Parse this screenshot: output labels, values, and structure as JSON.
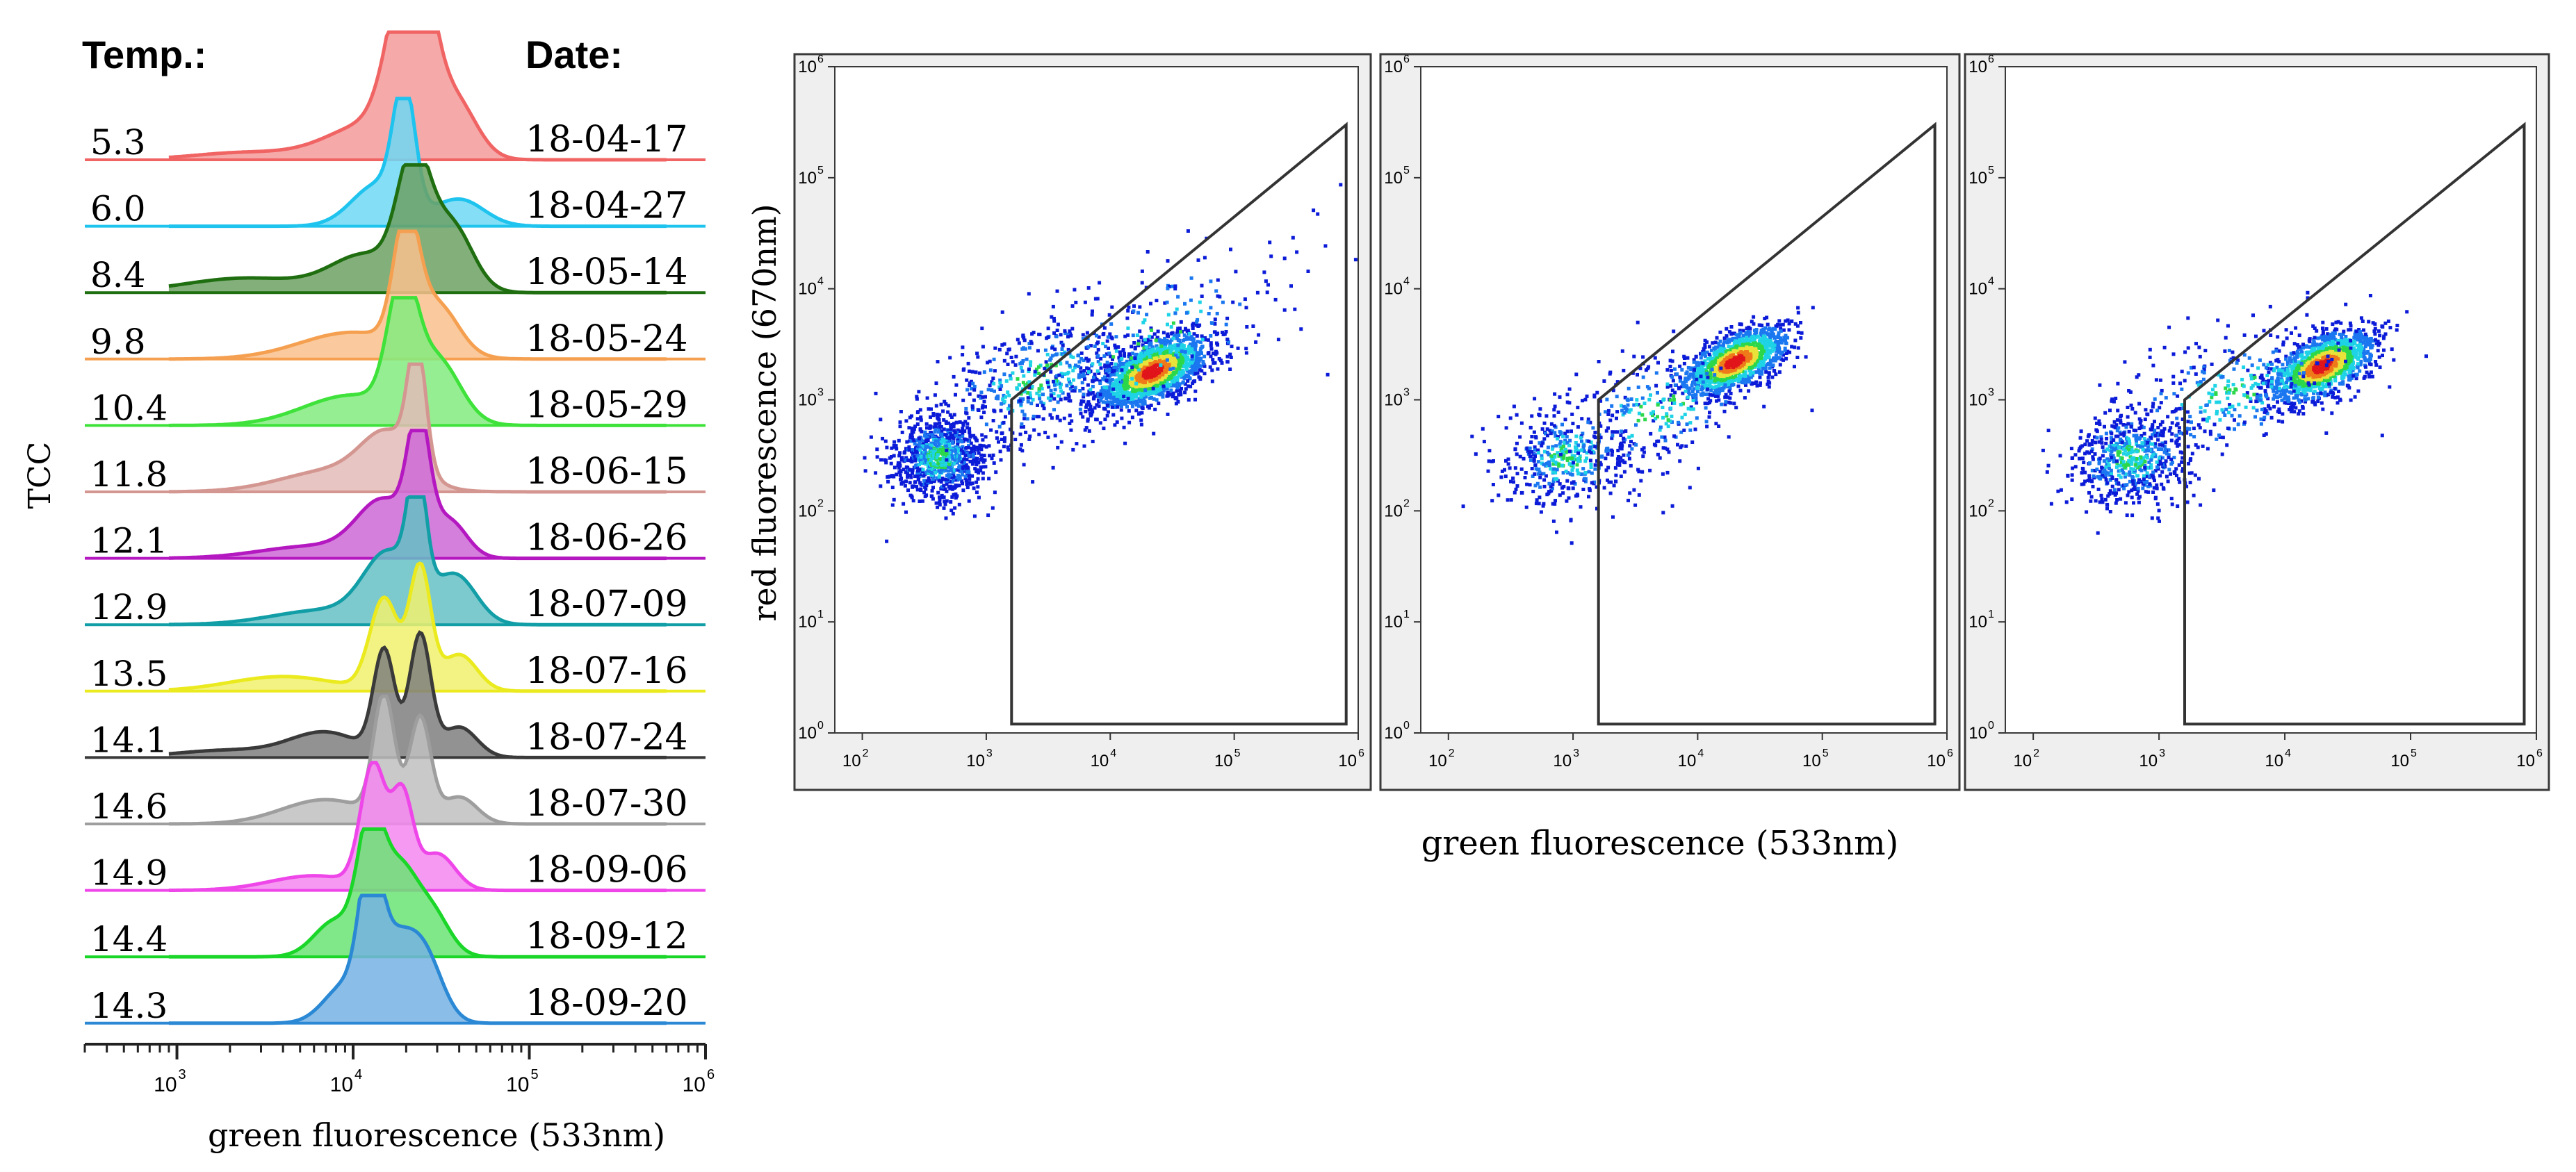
{
  "colors": {
    "plot_bg": "#efefef",
    "frame": "#3a3a3a",
    "gate": "#333333",
    "density": [
      "#0b1bd8",
      "#1b77f0",
      "#1fd3e6",
      "#2cd84a",
      "#e8e23a",
      "#ef7a1a",
      "#e0141a"
    ]
  },
  "chart_data": [
    {
      "type": "area",
      "ylabel": "TCC",
      "xlabel": "green fluorescence (533nm)",
      "xscale": "log",
      "xlim": [
        300,
        1000000
      ],
      "xticks": [
        1000,
        10000,
        100000,
        1000000
      ],
      "xtick_labels": [
        {
          "base": "10",
          "exp": "3"
        },
        {
          "base": "10",
          "exp": "4"
        },
        {
          "base": "10",
          "exp": "5"
        },
        {
          "base": "10",
          "exp": "6"
        }
      ],
      "column_headers": {
        "temp": "Temp.:",
        "date": "Date:"
      },
      "series": [
        {
          "temp": "5.3",
          "date": "18-04-17",
          "color": "#f06464",
          "peaks": [
            [
              13000,
              0.25,
              0.3
            ],
            [
              19000,
              0.1,
              0.92
            ],
            [
              24000,
              0.09,
              1.0
            ],
            [
              38000,
              0.12,
              0.45
            ],
            [
              2500,
              0.3,
              0.06
            ]
          ]
        },
        {
          "temp": "6.0",
          "date": "18-04-27",
          "color": "#1ec3ee",
          "peaks": [
            [
              19500,
              0.06,
              1.0
            ],
            [
              14000,
              0.15,
              0.35
            ],
            [
              40000,
              0.14,
              0.22
            ]
          ]
        },
        {
          "temp": "8.4",
          "date": "18-05-14",
          "color": "#1f6e10",
          "peaks": [
            [
              22000,
              0.09,
              1.0
            ],
            [
              36000,
              0.12,
              0.55
            ],
            [
              12000,
              0.2,
              0.3
            ],
            [
              2500,
              0.35,
              0.12
            ]
          ]
        },
        {
          "temp": "9.8",
          "date": "18-05-24",
          "color": "#f5a050",
          "peaks": [
            [
              20000,
              0.07,
              1.0
            ],
            [
              30000,
              0.12,
              0.4
            ],
            [
              10000,
              0.3,
              0.22
            ]
          ]
        },
        {
          "temp": "10.4",
          "date": "18-05-29",
          "color": "#3ee23a",
          "peaks": [
            [
              19000,
              0.08,
              1.0
            ],
            [
              30000,
              0.13,
              0.5
            ],
            [
              10000,
              0.28,
              0.25
            ]
          ]
        },
        {
          "temp": "11.8",
          "date": "18-06-15",
          "color": "#d49690",
          "peaks": [
            [
              23000,
              0.05,
              1.0
            ],
            [
              16000,
              0.15,
              0.4
            ],
            [
              8000,
              0.3,
              0.18
            ]
          ]
        },
        {
          "temp": "12.1",
          "date": "18-06-26",
          "color": "#b418c0",
          "peaks": [
            [
              23500,
              0.06,
              1.0
            ],
            [
              15000,
              0.15,
              0.45
            ],
            [
              35000,
              0.1,
              0.3
            ],
            [
              6000,
              0.3,
              0.1
            ]
          ]
        },
        {
          "temp": "12.9",
          "date": "18-07-09",
          "color": "#129ea6",
          "peaks": [
            [
              23000,
              0.05,
              1.0
            ],
            [
              16000,
              0.14,
              0.55
            ],
            [
              38000,
              0.12,
              0.4
            ],
            [
              7000,
              0.3,
              0.12
            ]
          ]
        },
        {
          "temp": "13.5",
          "date": "18-07-16",
          "color": "#eaea1e",
          "peaks": [
            [
              24000,
              0.06,
              1.0
            ],
            [
              15000,
              0.08,
              0.75
            ],
            [
              40000,
              0.1,
              0.3
            ],
            [
              4000,
              0.3,
              0.12
            ]
          ]
        },
        {
          "temp": "14.1",
          "date": "18-07-24",
          "color": "#3a3a3a",
          "peaks": [
            [
              15000,
              0.06,
              0.85
            ],
            [
              24000,
              0.06,
              1.0
            ],
            [
              40000,
              0.1,
              0.25
            ],
            [
              7000,
              0.2,
              0.2
            ],
            [
              2000,
              0.3,
              0.06
            ]
          ]
        },
        {
          "temp": "14.6",
          "date": "18-07-30",
          "color": "#9e9e9e",
          "peaks": [
            [
              15000,
              0.06,
              1.0
            ],
            [
              24000,
              0.06,
              0.85
            ],
            [
              40000,
              0.1,
              0.22
            ],
            [
              7000,
              0.25,
              0.2
            ]
          ]
        },
        {
          "temp": "14.9",
          "date": "18-09-06",
          "color": "#ee46e8",
          "peaks": [
            [
              13000,
              0.07,
              1.0
            ],
            [
              19000,
              0.06,
              0.75
            ],
            [
              30000,
              0.1,
              0.3
            ],
            [
              6000,
              0.25,
              0.12
            ]
          ]
        },
        {
          "temp": "14.4",
          "date": "18-09-12",
          "color": "#1ad628",
          "peaks": [
            [
              12500,
              0.07,
              1.0
            ],
            [
              18000,
              0.1,
              0.7
            ],
            [
              28000,
              0.1,
              0.35
            ],
            [
              8000,
              0.12,
              0.3
            ]
          ]
        },
        {
          "temp": "14.3",
          "date": "18-09-20",
          "color": "#2a88d4",
          "peaks": [
            [
              12500,
              0.06,
              1.0
            ],
            [
              17000,
              0.12,
              0.65
            ],
            [
              26000,
              0.1,
              0.45
            ],
            [
              9000,
              0.12,
              0.3
            ]
          ]
        }
      ]
    },
    {
      "type": "scatter",
      "ylabel": "red fluorescence (670nm)",
      "xlabel": "green fluorescence (533nm)",
      "xscale": "log",
      "yscale": "log",
      "panels": [
        {
          "xlim": [
            60,
            1000000
          ],
          "ylim": [
            1,
            1000000
          ],
          "gate": [
            [
              1600,
              1.2
            ],
            [
              1600,
              1000
            ],
            [
              800000,
              300000
            ],
            [
              800000,
              1.2
            ]
          ],
          "clusters": [
            {
              "cx": 22000,
              "cy": 1800,
              "sx": 0.25,
              "sy": 0.22,
              "n": 1600,
              "rot": 0.55
            },
            {
              "cx": 420,
              "cy": 300,
              "sx": 0.2,
              "sy": 0.35,
              "n": 900,
              "rot": 0.3
            },
            {
              "cx": 2500,
              "cy": 1500,
              "sx": 0.45,
              "sy": 0.45,
              "n": 450,
              "rot": 0.5
            },
            {
              "cx": 20000,
              "cy": 3000,
              "sx": 0.7,
              "sy": 0.55,
              "n": 260,
              "rot": 0.6
            }
          ]
        },
        {
          "xlim": [
            60,
            1000000
          ],
          "ylim": [
            1,
            1000000
          ],
          "gate": [
            [
              1600,
              1.2
            ],
            [
              1600,
              1000
            ],
            [
              800000,
              300000
            ],
            [
              800000,
              1.2
            ]
          ],
          "clusters": [
            {
              "cx": 20000,
              "cy": 2200,
              "sx": 0.24,
              "sy": 0.2,
              "n": 1300,
              "rot": 0.55
            },
            {
              "cx": 900,
              "cy": 300,
              "sx": 0.28,
              "sy": 0.4,
              "n": 420,
              "rot": 0.2
            },
            {
              "cx": 5000,
              "cy": 800,
              "sx": 0.45,
              "sy": 0.45,
              "n": 260,
              "rot": 0.4
            }
          ]
        },
        {
          "xlim": [
            60,
            1000000
          ],
          "ylim": [
            1,
            1000000
          ],
          "gate": [
            [
              1600,
              1.2
            ],
            [
              1600,
              1000
            ],
            [
              800000,
              300000
            ],
            [
              800000,
              1.2
            ]
          ],
          "clusters": [
            {
              "cx": 20000,
              "cy": 2000,
              "sx": 0.24,
              "sy": 0.22,
              "n": 1300,
              "rot": 0.55
            },
            {
              "cx": 600,
              "cy": 300,
              "sx": 0.25,
              "sy": 0.4,
              "n": 600,
              "rot": 0.2
            },
            {
              "cx": 4000,
              "cy": 1200,
              "sx": 0.5,
              "sy": 0.5,
              "n": 320,
              "rot": 0.4
            }
          ]
        }
      ],
      "xticks": [
        100,
        1000,
        10000,
        100000,
        1000000
      ],
      "yticks": [
        1,
        10,
        100,
        1000,
        10000,
        100000,
        1000000
      ],
      "xtick_labels": [
        {
          "base": "10",
          "exp": "2"
        },
        {
          "base": "10",
          "exp": "3"
        },
        {
          "base": "10",
          "exp": "4"
        },
        {
          "base": "10",
          "exp": "5"
        },
        {
          "base": "10",
          "exp": "6"
        }
      ],
      "ytick_labels": [
        {
          "base": "10",
          "exp": "0"
        },
        {
          "base": "10",
          "exp": "1"
        },
        {
          "base": "10",
          "exp": "2"
        },
        {
          "base": "10",
          "exp": "3"
        },
        {
          "base": "10",
          "exp": "4"
        },
        {
          "base": "10",
          "exp": "5"
        },
        {
          "base": "10",
          "exp": "6"
        }
      ]
    }
  ]
}
